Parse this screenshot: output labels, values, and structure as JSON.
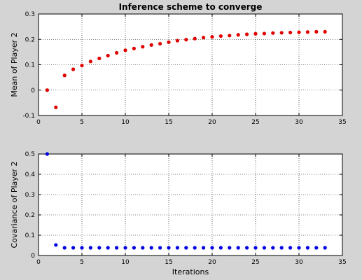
{
  "figure": {
    "background": "#d4d4d4",
    "axes_background": "#ffffff"
  },
  "chart_data": [
    {
      "type": "scatter",
      "title": "Inference scheme to converge",
      "xlabel": "",
      "ylabel": "Mean of Player 2",
      "xlim": [
        0,
        35
      ],
      "ylim": [
        -0.1,
        0.3
      ],
      "xticks": [
        0,
        5,
        10,
        15,
        20,
        25,
        30,
        35
      ],
      "yticks": [
        -0.1,
        0,
        0.1,
        0.2,
        0.3
      ],
      "xtick_labels": [
        "0",
        "5",
        "10",
        "15",
        "20",
        "25",
        "30",
        "35"
      ],
      "ytick_labels": [
        "-0.1",
        "0",
        "0.1",
        "0.2",
        "0.3"
      ],
      "grid": true,
      "color": "#e00000",
      "x": [
        1,
        2,
        3,
        4,
        5,
        6,
        7,
        8,
        9,
        10,
        11,
        12,
        13,
        14,
        15,
        16,
        17,
        18,
        19,
        20,
        21,
        22,
        23,
        24,
        25,
        26,
        27,
        28,
        29,
        30,
        31,
        32,
        33
      ],
      "y": [
        0,
        -0.068,
        0.058,
        0.082,
        0.097,
        0.113,
        0.125,
        0.136,
        0.147,
        0.157,
        0.164,
        0.171,
        0.178,
        0.183,
        0.189,
        0.195,
        0.199,
        0.203,
        0.207,
        0.21,
        0.213,
        0.215,
        0.218,
        0.22,
        0.222,
        0.223,
        0.225,
        0.226,
        0.227,
        0.228,
        0.229,
        0.23,
        0.23
      ]
    },
    {
      "type": "scatter",
      "title": "",
      "xlabel": "Iterations",
      "ylabel": "Covariance of Player 2",
      "xlim": [
        0,
        35
      ],
      "ylim": [
        0,
        0.5
      ],
      "xticks": [
        0,
        5,
        10,
        15,
        20,
        25,
        30,
        35
      ],
      "yticks": [
        0,
        0.1,
        0.2,
        0.3,
        0.4,
        0.5
      ],
      "xtick_labels": [
        "0",
        "5",
        "10",
        "15",
        "20",
        "25",
        "30",
        "35"
      ],
      "ytick_labels": [
        "0",
        "0.1",
        "0.2",
        "0.3",
        "0.4",
        "0.5"
      ],
      "grid": true,
      "color": "#0000e0",
      "x": [
        1,
        2,
        3,
        4,
        5,
        6,
        7,
        8,
        9,
        10,
        11,
        12,
        13,
        14,
        15,
        16,
        17,
        18,
        19,
        20,
        21,
        22,
        23,
        24,
        25,
        26,
        27,
        28,
        29,
        30,
        31,
        32,
        33
      ],
      "y": [
        0.5,
        0.052,
        0.038,
        0.038,
        0.038,
        0.038,
        0.038,
        0.038,
        0.038,
        0.038,
        0.038,
        0.038,
        0.038,
        0.038,
        0.038,
        0.038,
        0.038,
        0.038,
        0.038,
        0.038,
        0.038,
        0.038,
        0.038,
        0.038,
        0.038,
        0.038,
        0.038,
        0.038,
        0.038,
        0.038,
        0.038,
        0.038,
        0.038
      ]
    }
  ]
}
